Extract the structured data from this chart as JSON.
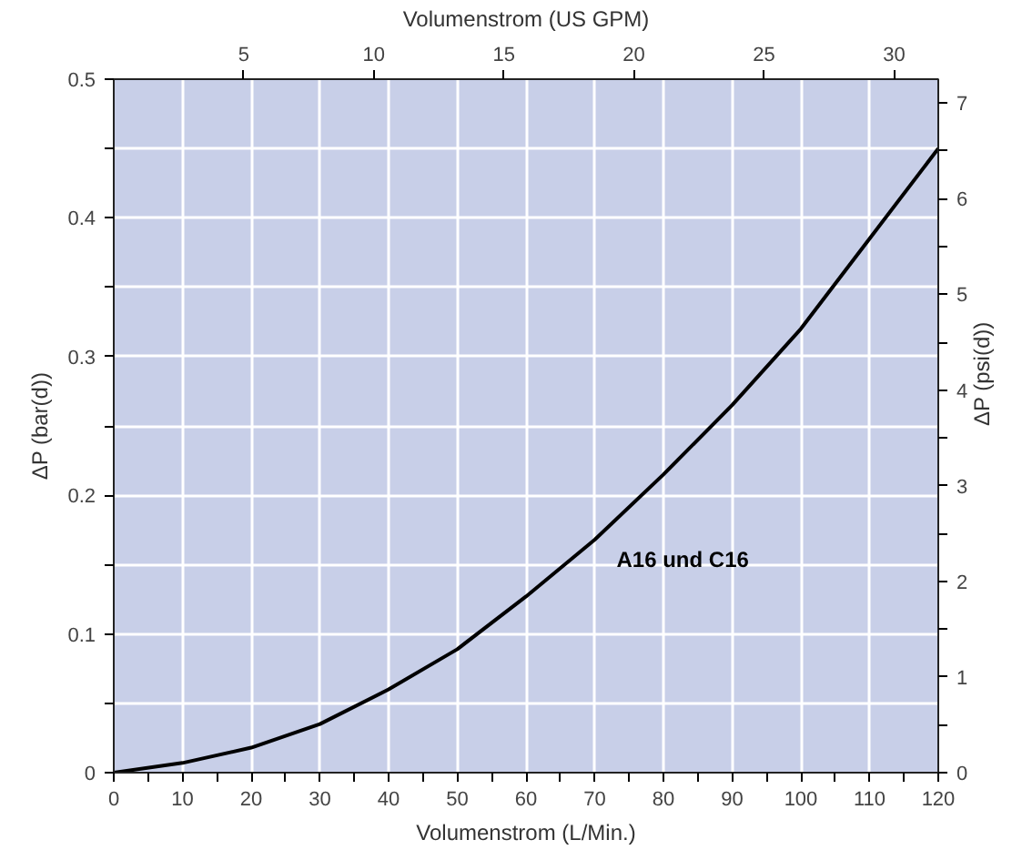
{
  "chart_data": {
    "type": "line",
    "xlabel": "Volumenstrom (L/Min.)",
    "ylabel": "ΔP (bar(d))",
    "y2label": "ΔP (psi(d))",
    "x2label": "Volumenstrom (US GPM)",
    "x": [
      0,
      10,
      20,
      30,
      40,
      50,
      60,
      70,
      80,
      90,
      100,
      110,
      120
    ],
    "series": [
      {
        "name": "A16 und C16",
        "color": "#000000",
        "values": [
          0,
          0.007,
          0.018,
          0.035,
          0.06,
          0.089,
          0.127,
          0.168,
          0.215,
          0.265,
          0.32,
          0.385,
          0.45
        ]
      }
    ],
    "xlim": [
      0,
      120
    ],
    "xticks": [
      0,
      {
        "value": 5,
        "label": null
      },
      10,
      {
        "value": 15,
        "label": null
      },
      20,
      {
        "value": 25,
        "label": null
      },
      30,
      {
        "value": 35,
        "label": null
      },
      40,
      {
        "value": 45,
        "label": null
      },
      50,
      {
        "value": 55,
        "label": null
      },
      60,
      {
        "value": 65,
        "label": null
      },
      70,
      {
        "value": 75,
        "label": null
      },
      80,
      {
        "value": 85,
        "label": null
      },
      90,
      {
        "value": 95,
        "label": null
      },
      100,
      {
        "value": 105,
        "label": null
      },
      110,
      {
        "value": 115,
        "label": null
      },
      120
    ],
    "ylim": [
      0,
      0.5
    ],
    "yticks": [
      0,
      {
        "value": 0.05,
        "label": null
      },
      0.1,
      {
        "value": 0.15,
        "label": null
      },
      0.2,
      {
        "value": 0.25,
        "label": null
      },
      0.3,
      {
        "value": 0.35,
        "label": null
      },
      0.4,
      {
        "value": 0.45,
        "label": null
      },
      0.5
    ],
    "x2lim": [
      0,
      31.7
    ],
    "x2ticks": [
      5,
      10,
      15,
      20,
      25,
      30
    ],
    "y2lim": [
      0,
      7.25
    ],
    "y2ticks": [
      0,
      {
        "value": 0.5,
        "label": null
      },
      1,
      {
        "value": 1.5,
        "label": null
      },
      2,
      {
        "value": 2.5,
        "label": null
      },
      3,
      {
        "value": 3.5,
        "label": null
      },
      4,
      {
        "value": 4.5,
        "label": null
      },
      5,
      {
        "value": 5.5,
        "label": null
      },
      6,
      {
        "value": 6.5,
        "label": null
      },
      7
    ],
    "grid": true,
    "line_style": "solid",
    "marker": "none"
  }
}
